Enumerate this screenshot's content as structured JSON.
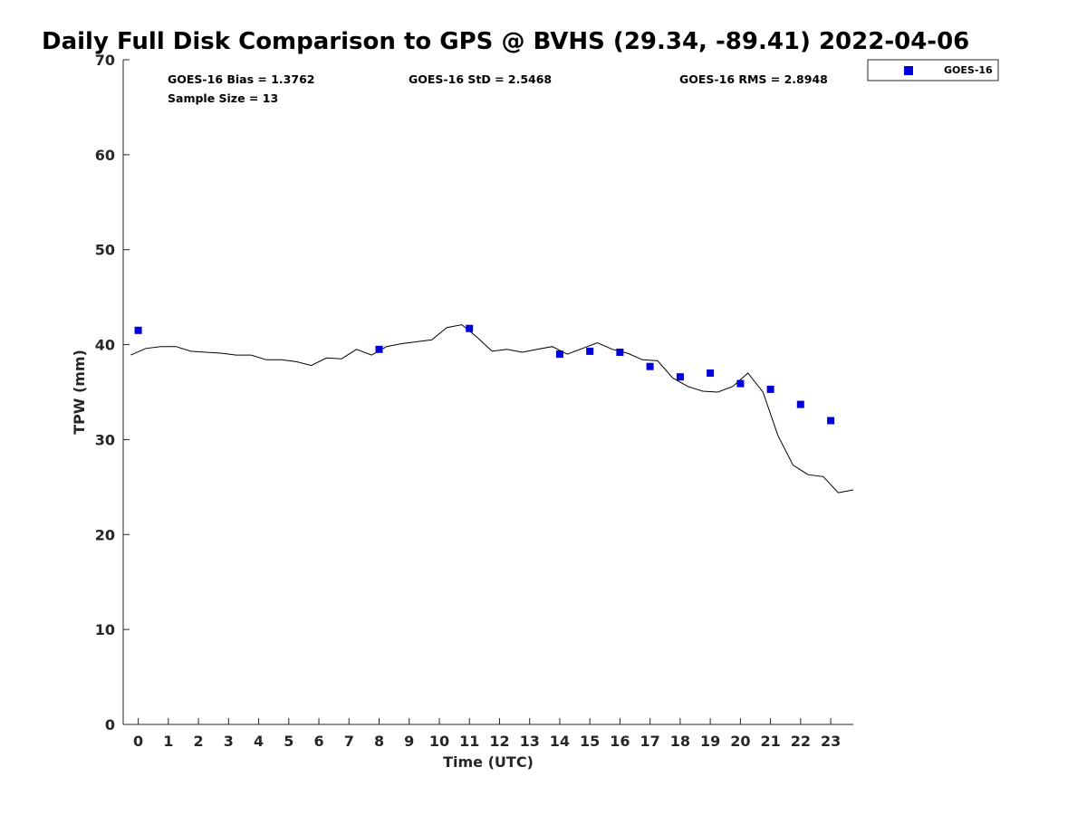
{
  "chart_data": {
    "type": "scatter",
    "title": "Daily Full Disk Comparison to GPS @ BVHS (29.34, -89.41) 2022-04-06",
    "xlabel": "Time (UTC)",
    "ylabel": "TPW (mm)",
    "xlim": [
      -0.5,
      23.75
    ],
    "ylim": [
      0,
      70
    ],
    "x_ticks": [
      0,
      1,
      2,
      3,
      4,
      5,
      6,
      7,
      8,
      9,
      10,
      11,
      12,
      13,
      14,
      15,
      16,
      17,
      18,
      19,
      20,
      21,
      22,
      23
    ],
    "x_tick_labels": [
      "0",
      "1",
      "2",
      "3",
      "4",
      "5",
      "6",
      "7",
      "8",
      "9",
      "10",
      "11",
      "12",
      "13",
      "14",
      "15",
      "16",
      "17",
      "18",
      "19",
      "20",
      "21",
      "22",
      "23"
    ],
    "y_ticks": [
      0,
      10,
      20,
      30,
      40,
      50,
      60,
      70
    ],
    "y_tick_labels": [
      "0",
      "10",
      "20",
      "30",
      "40",
      "50",
      "60",
      "70"
    ],
    "grid": false,
    "legend_position": "outside top-right",
    "stats": {
      "bias": "GOES-16 Bias = 1.3762",
      "std": "GOES-16 StD = 2.5468",
      "rms": "GOES-16 RMS = 2.8948",
      "sample": "Sample Size = 13"
    },
    "series": [
      {
        "name": "GOES-16",
        "kind": "scatter",
        "marker": "square",
        "color": "#0000dd",
        "x": [
          0,
          8,
          11,
          14,
          15,
          16,
          17,
          18,
          19,
          20,
          21,
          22,
          23
        ],
        "y": [
          41.5,
          39.5,
          41.7,
          39.0,
          39.3,
          39.2,
          37.7,
          36.6,
          37.0,
          35.9,
          35.3,
          33.7,
          32.0
        ]
      },
      {
        "kind": "line",
        "color": "#000000",
        "x": [
          -0.25,
          0.25,
          0.75,
          1.25,
          1.75,
          2.25,
          2.75,
          3.25,
          3.75,
          4.25,
          4.75,
          5.25,
          5.75,
          6.25,
          6.75,
          7.25,
          7.75,
          8.25,
          8.75,
          9.25,
          9.75,
          10.25,
          10.75,
          11.25,
          11.75,
          12.25,
          12.75,
          13.25,
          13.75,
          14.25,
          14.75,
          15.25,
          15.75,
          16.25,
          16.75,
          17.25,
          17.75,
          18.25,
          18.75,
          19.25,
          19.75,
          20.25,
          20.75,
          21.25,
          21.75,
          22.25,
          22.75,
          23.25,
          23.75
        ],
        "y": [
          38.9,
          39.6,
          39.8,
          39.8,
          39.3,
          39.2,
          39.1,
          38.9,
          38.9,
          38.4,
          38.4,
          38.2,
          37.8,
          38.6,
          38.5,
          39.5,
          38.9,
          39.8,
          40.1,
          40.3,
          40.5,
          41.8,
          42.1,
          40.8,
          39.3,
          39.5,
          39.2,
          39.5,
          39.8,
          39.0,
          39.6,
          40.2,
          39.5,
          39.1,
          38.4,
          38.3,
          36.5,
          35.6,
          35.1,
          35.0,
          35.6,
          37.0,
          35.0,
          30.4,
          27.3,
          26.3,
          26.1,
          24.4,
          24.7
        ]
      }
    ]
  }
}
